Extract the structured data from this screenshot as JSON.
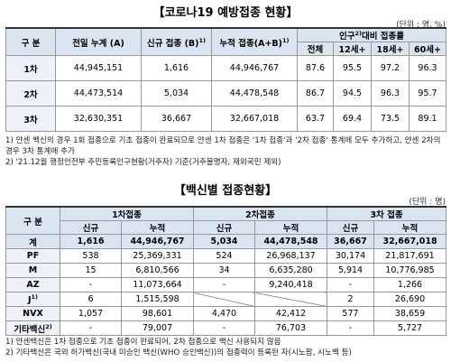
{
  "section1": {
    "title": "【코로나19 예방접종 현황】",
    "unit": "(단위 : 명, %)",
    "header": {
      "category": "구 분",
      "prev": "전일 누계 (A)",
      "new": "신규 접종 (B)",
      "new_note": "1)",
      "total": "누적 접종(A+B)",
      "total_note": "1)",
      "rate_prefix": "인구",
      "rate_note": "2)",
      "rate_suffix": "대비 접종률",
      "rate_cols": [
        "전체",
        "12세+",
        "18세+",
        "60세+"
      ]
    },
    "rows": [
      {
        "label": "1차",
        "values": [
          "44,945,151",
          "1,616",
          "44,946,767",
          "87.6",
          "95.5",
          "97.2",
          "96.3"
        ]
      },
      {
        "label": "2차",
        "values": [
          "44,473,514",
          "5,034",
          "44,478,548",
          "86.7",
          "94.5",
          "96.3",
          "95.7"
        ]
      },
      {
        "label": "3차",
        "values": [
          "32,630,351",
          "36,667",
          "32,667,018",
          "63.7",
          "69.4",
          "73.5",
          "89.1"
        ]
      }
    ],
    "notes": [
      "1) 얀센 백신의 경우 1회 접종으로 기초 접종이 완료되므로 얀센 1차 접종은 '1차 접종'과 '2차 접종' 통계에 모두 추가하고, 얀센 2차의 경우 3차 통계에 추가",
      "2) '21.12월 행정안전부 주민등록인구현황(거주자) 기준(거주불명자, 재외국민 제외)"
    ]
  },
  "section2": {
    "title": "【백신별 접종현황】",
    "unit": "(단위 : 명)",
    "header": {
      "category": "구 분",
      "groups": [
        "1차접종",
        "2차접종",
        "3차 접종"
      ],
      "sub": [
        "신규",
        "누적"
      ]
    },
    "rows": [
      {
        "label": "계",
        "values": [
          "1,616",
          "44,946,767",
          "5,034",
          "44,478,548",
          "36,667",
          "32,667,018"
        ]
      },
      {
        "label": "PF",
        "values": [
          "538",
          "25,369,331",
          "524",
          "26,968,137",
          "30,174",
          "21,817,691"
        ]
      },
      {
        "label": "M",
        "values": [
          "15",
          "6,810,566",
          "34",
          "6,635,280",
          "5,914",
          "10,776,985"
        ]
      },
      {
        "label": "AZ",
        "values": [
          "-",
          "11,073,664",
          "-",
          "9,240,418",
          "-",
          "1,266"
        ]
      },
      {
        "label": "J",
        "note": "1)",
        "values": [
          "6",
          "1,515,598",
          null,
          null,
          "2",
          "26,690"
        ]
      },
      {
        "label": "NVX",
        "values": [
          "1,057",
          "98,601",
          "4,470",
          "42,412",
          "577",
          "38,659"
        ]
      },
      {
        "label": "기타백신",
        "note": "2)",
        "values": [
          "-",
          "79,007",
          "-",
          "76,703",
          "-",
          "5,727"
        ]
      }
    ],
    "notes": [
      "1) 얀센백신은 1차 접종으로 기초 접종이 완료되어, 2차 접종으로 백신 사용되지 않음",
      "2) 기타백신은 국외 허가백신(국내 미승인 백신(WHO 승인백신))의 접종력이 등록된 자(시노팜, 시노백 등)"
    ]
  }
}
